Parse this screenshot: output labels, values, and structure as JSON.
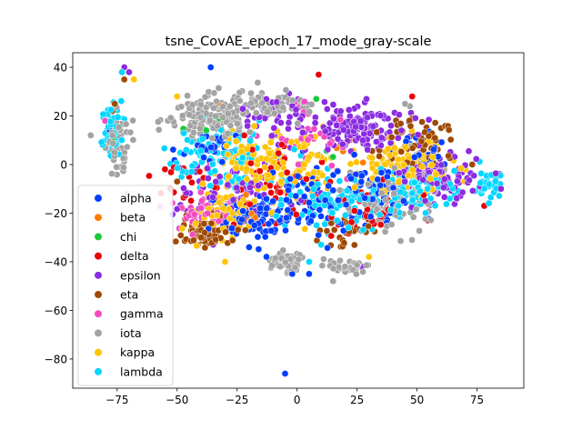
{
  "chart_data": {
    "type": "scatter",
    "title": "tsne_CovAE_epoch_17_mode_gray-scale",
    "xlabel": "",
    "ylabel": "",
    "xlim": [
      -93.5,
      94.5
    ],
    "ylim": [
      -92,
      46
    ],
    "xticks": [
      -75,
      -50,
      -25,
      0,
      25,
      50,
      75
    ],
    "yticks": [
      -80,
      -60,
      -40,
      -20,
      0,
      20,
      40
    ],
    "xtick_labels": [
      "−75",
      "−50",
      "−25",
      "0",
      "25",
      "50",
      "75"
    ],
    "ytick_labels": [
      "−80",
      "−60",
      "−40",
      "−20",
      "0",
      "20",
      "40"
    ],
    "grid": false,
    "legend_position": "lower-left",
    "series": [
      {
        "name": "alpha",
        "color": "#023eff",
        "clusters": [
          [
            -20,
            -22,
            14,
            8,
            90
          ],
          [
            5,
            -15,
            20,
            12,
            90
          ],
          [
            35,
            -10,
            15,
            10,
            60
          ],
          [
            -35,
            8,
            10,
            8,
            30
          ],
          [
            50,
            5,
            10,
            8,
            30
          ]
        ],
        "points": [
          [
            -5,
            -86
          ],
          [
            -2,
            -45
          ],
          [
            5,
            -45
          ],
          [
            -20,
            -34
          ],
          [
            -36,
            40
          ],
          [
            -78,
            14
          ]
        ]
      },
      {
        "name": "beta",
        "color": "#ff7c00",
        "clusters": [
          [
            -20,
            -20,
            8,
            5,
            5
          ],
          [
            25,
            5,
            10,
            8,
            5
          ]
        ],
        "points": [
          [
            -33,
            25
          ],
          [
            -76,
            18
          ]
        ]
      },
      {
        "name": "chi",
        "color": "#1ac938",
        "clusters": [
          [
            -40,
            15,
            8,
            5,
            4
          ],
          [
            10,
            0,
            10,
            6,
            4
          ]
        ],
        "points": [
          [
            -77,
            10
          ],
          [
            8,
            27
          ]
        ]
      },
      {
        "name": "delta",
        "color": "#e8000b",
        "clusters": [
          [
            -10,
            -10,
            20,
            14,
            60
          ],
          [
            30,
            -20,
            15,
            10,
            40
          ],
          [
            -45,
            -10,
            10,
            8,
            20
          ]
        ],
        "points": [
          [
            9,
            37
          ],
          [
            78,
            -17
          ],
          [
            48,
            28
          ],
          [
            -22,
            12
          ]
        ]
      },
      {
        "name": "epsilon",
        "color": "#8b2be2",
        "clusters": [
          [
            25,
            15,
            22,
            8,
            150
          ],
          [
            60,
            -5,
            18,
            10,
            100
          ],
          [
            -25,
            -10,
            25,
            12,
            80
          ],
          [
            -10,
            20,
            15,
            8,
            40
          ]
        ],
        "points": [
          [
            82,
            -8
          ],
          [
            85,
            -10
          ],
          [
            -70,
            38
          ],
          [
            -72,
            40
          ],
          [
            -35,
            -33
          ],
          [
            27,
            -42
          ]
        ]
      },
      {
        "name": "eta",
        "color": "#9f4800",
        "clusters": [
          [
            -38,
            -28,
            10,
            6,
            80
          ],
          [
            50,
            10,
            15,
            10,
            60
          ],
          [
            20,
            -28,
            10,
            6,
            30
          ]
        ],
        "points": [
          [
            -72,
            35
          ],
          [
            -76,
            25
          ],
          [
            -77,
            22
          ],
          [
            -50,
            -7
          ],
          [
            60,
            15
          ],
          [
            73,
            0
          ]
        ]
      },
      {
        "name": "gamma",
        "color": "#f14cc1",
        "clusters": [
          [
            -38,
            -20,
            10,
            6,
            40
          ],
          [
            0,
            10,
            20,
            12,
            40
          ]
        ],
        "points": [
          [
            -80,
            18
          ],
          [
            52,
            -3
          ]
        ]
      },
      {
        "name": "iota",
        "color": "#a3a3a3",
        "clusters": [
          [
            -35,
            20,
            15,
            8,
            140
          ],
          [
            -10,
            25,
            15,
            6,
            60
          ],
          [
            -75,
            10,
            4,
            12,
            60
          ],
          [
            -5,
            -40,
            6,
            4,
            60
          ],
          [
            20,
            -42,
            8,
            3,
            40
          ],
          [
            40,
            -15,
            20,
            12,
            80
          ]
        ],
        "points": [
          [
            45,
            25
          ],
          [
            47,
            24
          ],
          [
            15,
            -48
          ],
          [
            -86,
            12
          ]
        ]
      },
      {
        "name": "kappa",
        "color": "#ffc400",
        "clusters": [
          [
            -10,
            0,
            25,
            14,
            160
          ],
          [
            45,
            0,
            20,
            10,
            100
          ],
          [
            -30,
            -20,
            15,
            10,
            60
          ]
        ],
        "points": [
          [
            -68,
            35
          ],
          [
            -75,
            22
          ],
          [
            -50,
            28
          ],
          [
            -30,
            -40
          ],
          [
            30,
            -38
          ]
        ]
      },
      {
        "name": "lambda",
        "color": "#00d7ff",
        "clusters": [
          [
            -30,
            5,
            20,
            12,
            100
          ],
          [
            15,
            -15,
            20,
            10,
            100
          ],
          [
            50,
            -10,
            15,
            10,
            80
          ],
          [
            -77,
            15,
            4,
            12,
            50
          ],
          [
            80,
            -8,
            5,
            5,
            30
          ]
        ],
        "points": [
          [
            -73,
            38
          ],
          [
            -5,
            -25
          ],
          [
            5,
            -40
          ],
          [
            10,
            -33
          ]
        ]
      }
    ]
  }
}
